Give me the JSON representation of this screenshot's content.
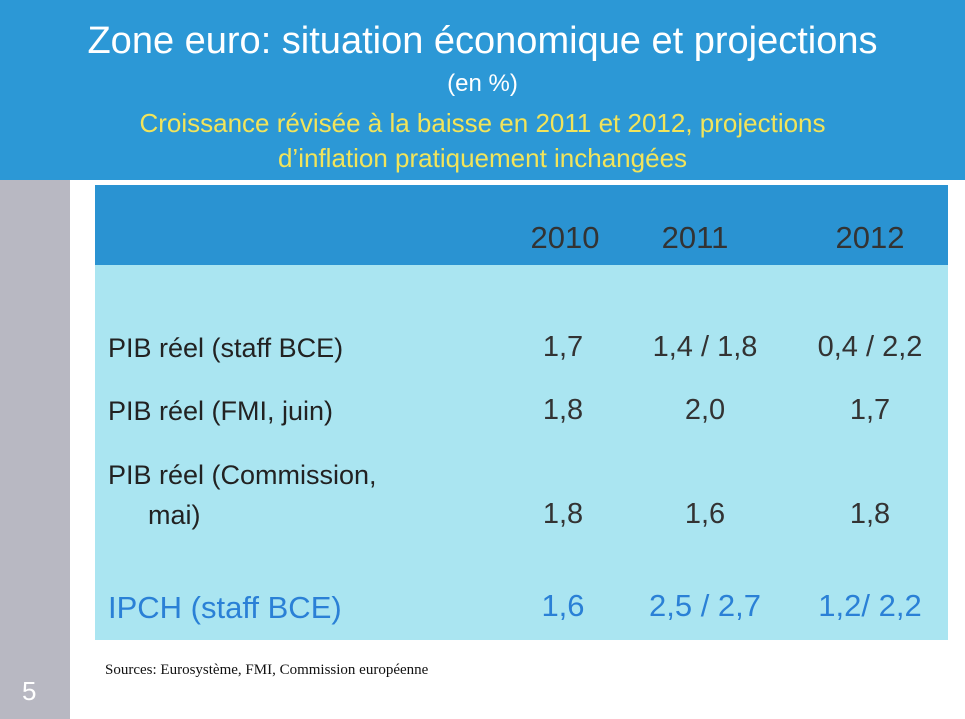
{
  "header": {
    "title": "Zone euro: situation économique et projections",
    "unit": "(en %)",
    "subtitle_lines": [
      "Croissance révisée à la baisse en 2011 et 2012, projections",
      "d’inflation pratiquement inchangées"
    ]
  },
  "table": {
    "columns": [
      "2010",
      "2011",
      "2012"
    ],
    "rows": [
      {
        "label": [
          "PIB réel (staff BCE)"
        ],
        "values": [
          "1,7",
          "1,4 / 1,8",
          "0,4 / 2,2"
        ]
      },
      {
        "label": [
          "PIB réel (FMI, juin)"
        ],
        "values": [
          "1,8",
          "2,0",
          "1,7"
        ]
      },
      {
        "label": [
          "PIB réel (Commission,",
          "mai)"
        ],
        "values": [
          "1,8",
          "1,6",
          "1,8"
        ]
      },
      {
        "label": [
          "IPCH (staff BCE)"
        ],
        "values": [
          "1,6",
          "2,5 / 2,7",
          "1,2/ 2,2"
        ]
      }
    ]
  },
  "footer": {
    "sources": "Sources: Eurosystème, FMI, Commission européenne",
    "page": "5"
  }
}
